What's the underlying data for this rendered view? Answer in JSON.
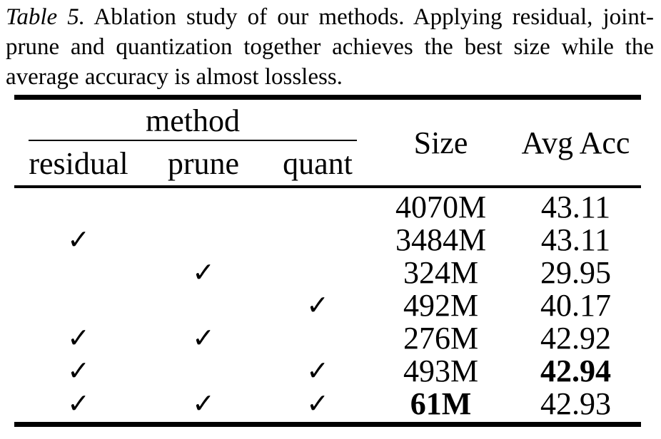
{
  "colors": {
    "text": "#000000",
    "background": "#ffffff",
    "rule": "#000000"
  },
  "caption": {
    "label": "Table 5.",
    "line1_rest": " Ablation study of our methods. Applying residual, joint-",
    "line2": "prune and quantization together achieves the best size while the",
    "line3": "average accuracy is almost lossless."
  },
  "table": {
    "group_header": "method",
    "columns": {
      "residual": "residual",
      "prune": "prune",
      "quant": "quant",
      "size": "Size",
      "avg_acc": "Avg Acc"
    },
    "check_icon": "✓",
    "rows": [
      {
        "residual": "",
        "prune": "",
        "quant": "",
        "size": "4070M",
        "avg_acc": "43.11"
      },
      {
        "residual": "✓",
        "prune": "",
        "quant": "",
        "size": "3484M",
        "avg_acc": "43.11"
      },
      {
        "residual": "",
        "prune": "✓",
        "quant": "",
        "size": "324M",
        "avg_acc": "29.95"
      },
      {
        "residual": "",
        "prune": "",
        "quant": "✓",
        "size": "492M",
        "avg_acc": "40.17"
      },
      {
        "residual": "✓",
        "prune": "✓",
        "quant": "",
        "size": "276M",
        "avg_acc": "42.92"
      },
      {
        "residual": "✓",
        "prune": "",
        "quant": "✓",
        "size": "493M",
        "avg_acc": "42.94"
      },
      {
        "residual": "✓",
        "prune": "✓",
        "quant": "✓",
        "size": "61M",
        "avg_acc": "42.93"
      }
    ]
  }
}
